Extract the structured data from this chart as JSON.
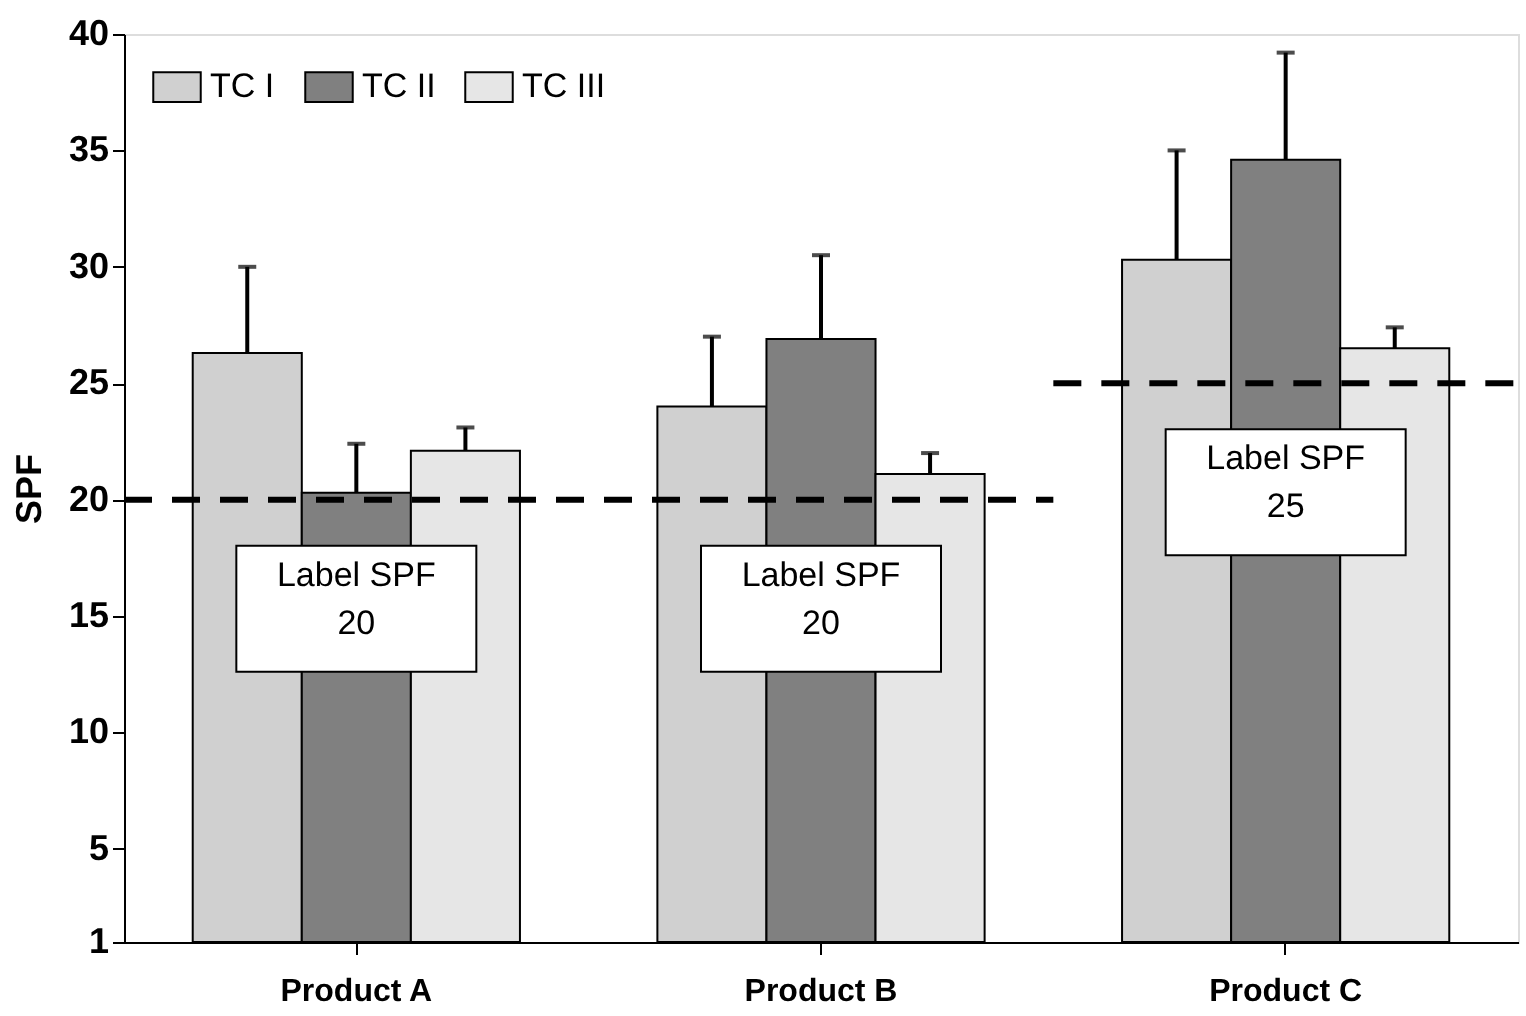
{
  "chart_data": {
    "type": "bar",
    "ylabel": "SPF",
    "categories": [
      "Product A",
      "Product B",
      "Product C"
    ],
    "series": [
      {
        "name": "TC I",
        "color": "#d0d0d0",
        "values": [
          26.3,
          24.0,
          30.3
        ],
        "errors": [
          [
            26.3,
            30.0
          ],
          [
            24.0,
            27.0
          ],
          [
            30.3,
            35.0
          ]
        ]
      },
      {
        "name": "TC II",
        "color": "#808080",
        "values": [
          20.3,
          26.9,
          34.6
        ],
        "errors": [
          [
            20.3,
            22.4
          ],
          [
            26.9,
            30.5
          ],
          [
            34.6,
            39.2
          ]
        ]
      },
      {
        "name": "TC III",
        "color": "#e6e6e6",
        "values": [
          22.1,
          21.1,
          26.5
        ],
        "errors": [
          [
            22.1,
            23.1
          ],
          [
            21.1,
            22.0
          ],
          [
            26.5,
            27.4
          ]
        ]
      }
    ],
    "ylim": [
      1,
      40
    ],
    "yticks": [
      1,
      5,
      10,
      15,
      20,
      25,
      30,
      35,
      40
    ],
    "grid": false,
    "legend": "top left",
    "ref_lines": [
      {
        "axis": "y",
        "value": 20,
        "line_style": "dashed",
        "color": "#000000"
      },
      {
        "axis": "y",
        "value": 25,
        "line_style": "dashed",
        "color": "#000000"
      }
    ],
    "annotations": [
      {
        "text": "Label SPF\n20",
        "x": "Product A",
        "y": 20
      },
      {
        "text": "Label SPF\n20",
        "x": "Product B",
        "y": 20
      },
      {
        "text": "Label SPF\n25",
        "x": "Product C",
        "y": 25
      }
    ]
  }
}
